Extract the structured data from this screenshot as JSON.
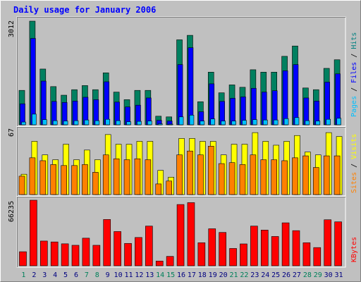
{
  "chart_data": [
    {
      "type": "bar",
      "panel": "pages-files-hits",
      "title": "Daily usage for January 2006",
      "ylabel_parts": [
        {
          "text": "Pages",
          "color": "#00c0ff"
        },
        {
          "text": " / ",
          "color": "#000000"
        },
        {
          "text": "Files",
          "color": "#0000ff"
        },
        {
          "text": " / ",
          "color": "#000000"
        },
        {
          "text": "Hits",
          "color": "#008080"
        }
      ],
      "y_max_label": "3012",
      "ylim": [
        0,
        3012
      ],
      "x": [
        1,
        2,
        3,
        4,
        5,
        6,
        7,
        8,
        9,
        10,
        11,
        12,
        13,
        14,
        15,
        16,
        17,
        18,
        19,
        20,
        21,
        22,
        23,
        24,
        25,
        26,
        27,
        28,
        29,
        30,
        31
      ],
      "series": [
        {
          "name": "Hits",
          "color": "#008060",
          "values": [
            1000,
            3012,
            1620,
            1110,
            860,
            1020,
            1140,
            1020,
            1510,
            950,
            730,
            1000,
            1000,
            250,
            230,
            2470,
            2600,
            670,
            1530,
            930,
            1160,
            1090,
            1600,
            1530,
            1530,
            1990,
            2290,
            1070,
            1020,
            1640,
            1890
          ]
        },
        {
          "name": "Files",
          "color": "#0000ff",
          "values": [
            610,
            2510,
            1270,
            680,
            650,
            690,
            800,
            730,
            1250,
            660,
            520,
            570,
            780,
            130,
            110,
            1750,
            2240,
            380,
            1190,
            680,
            770,
            810,
            1060,
            950,
            990,
            1570,
            1750,
            780,
            690,
            1240,
            1480
          ]
        },
        {
          "name": "Pages",
          "color": "#00c0ff",
          "values": [
            80,
            310,
            150,
            120,
            110,
            120,
            140,
            120,
            160,
            120,
            90,
            100,
            110,
            30,
            20,
            230,
            280,
            110,
            170,
            110,
            110,
            130,
            150,
            140,
            140,
            180,
            210,
            120,
            110,
            160,
            190
          ]
        }
      ]
    },
    {
      "type": "bar",
      "panel": "sites-visits",
      "ylabel_parts": [
        {
          "text": "Sites",
          "color": "#ff8000"
        },
        {
          "text": " / ",
          "color": "#000000"
        },
        {
          "text": "Visits",
          "color": "#ffff00"
        }
      ],
      "y_max_label": "67",
      "ylim": [
        0,
        67
      ],
      "x": [
        1,
        2,
        3,
        4,
        5,
        6,
        7,
        8,
        9,
        10,
        11,
        12,
        13,
        14,
        15,
        16,
        17,
        18,
        19,
        20,
        21,
        22,
        23,
        24,
        25,
        26,
        27,
        28,
        29,
        30,
        31
      ],
      "series": [
        {
          "name": "Visits",
          "color": "#ffff00",
          "values": [
            21,
            55,
            41,
            36,
            52,
            36,
            46,
            36,
            62,
            52,
            52,
            55,
            55,
            25,
            18,
            58,
            58,
            55,
            55,
            41,
            52,
            52,
            64,
            55,
            51,
            55,
            61,
            44,
            41,
            64,
            60
          ]
        },
        {
          "name": "Sites",
          "color": "#ff8000",
          "values": [
            19,
            38,
            35,
            31,
            30,
            30,
            31,
            23,
            41,
            37,
            36,
            37,
            36,
            11,
            14,
            41,
            45,
            41,
            50,
            32,
            33,
            31,
            41,
            36,
            36,
            35,
            38,
            40,
            28,
            40,
            40
          ]
        }
      ]
    },
    {
      "type": "bar",
      "panel": "kbytes",
      "ylabel_parts": [
        {
          "text": "KBytes",
          "color": "#ff0000"
        }
      ],
      "y_max_label": "66235",
      "ylim": [
        0,
        66235
      ],
      "x": [
        1,
        2,
        3,
        4,
        5,
        6,
        7,
        8,
        9,
        10,
        11,
        12,
        13,
        14,
        15,
        16,
        17,
        18,
        19,
        20,
        21,
        22,
        23,
        24,
        25,
        26,
        27,
        28,
        29,
        30,
        31
      ],
      "series": [
        {
          "name": "KBytes",
          "color": "#ff0000",
          "values": [
            14200,
            66235,
            25000,
            24100,
            22200,
            20700,
            27900,
            20700,
            46800,
            34600,
            22600,
            28600,
            40100,
            4800,
            9500,
            61900,
            63800,
            23300,
            37400,
            33700,
            17500,
            22100,
            40100,
            36100,
            29600,
            43400,
            35500,
            23300,
            18400,
            46500,
            44400
          ]
        }
      ]
    }
  ],
  "x_axis": {
    "labels": [
      "1",
      "2",
      "3",
      "4",
      "5",
      "6",
      "7",
      "8",
      "9",
      "10",
      "11",
      "12",
      "13",
      "14",
      "15",
      "16",
      "17",
      "18",
      "19",
      "20",
      "21",
      "22",
      "23",
      "24",
      "25",
      "26",
      "27",
      "28",
      "29",
      "30",
      "31"
    ],
    "weekend_days": [
      1,
      7,
      8,
      14,
      15,
      21,
      22,
      28,
      29
    ],
    "weekend_color": "#00805a",
    "weekday_color": "#000080"
  },
  "colors": {
    "background": "#c0c0c0",
    "title": "#0000ff"
  }
}
